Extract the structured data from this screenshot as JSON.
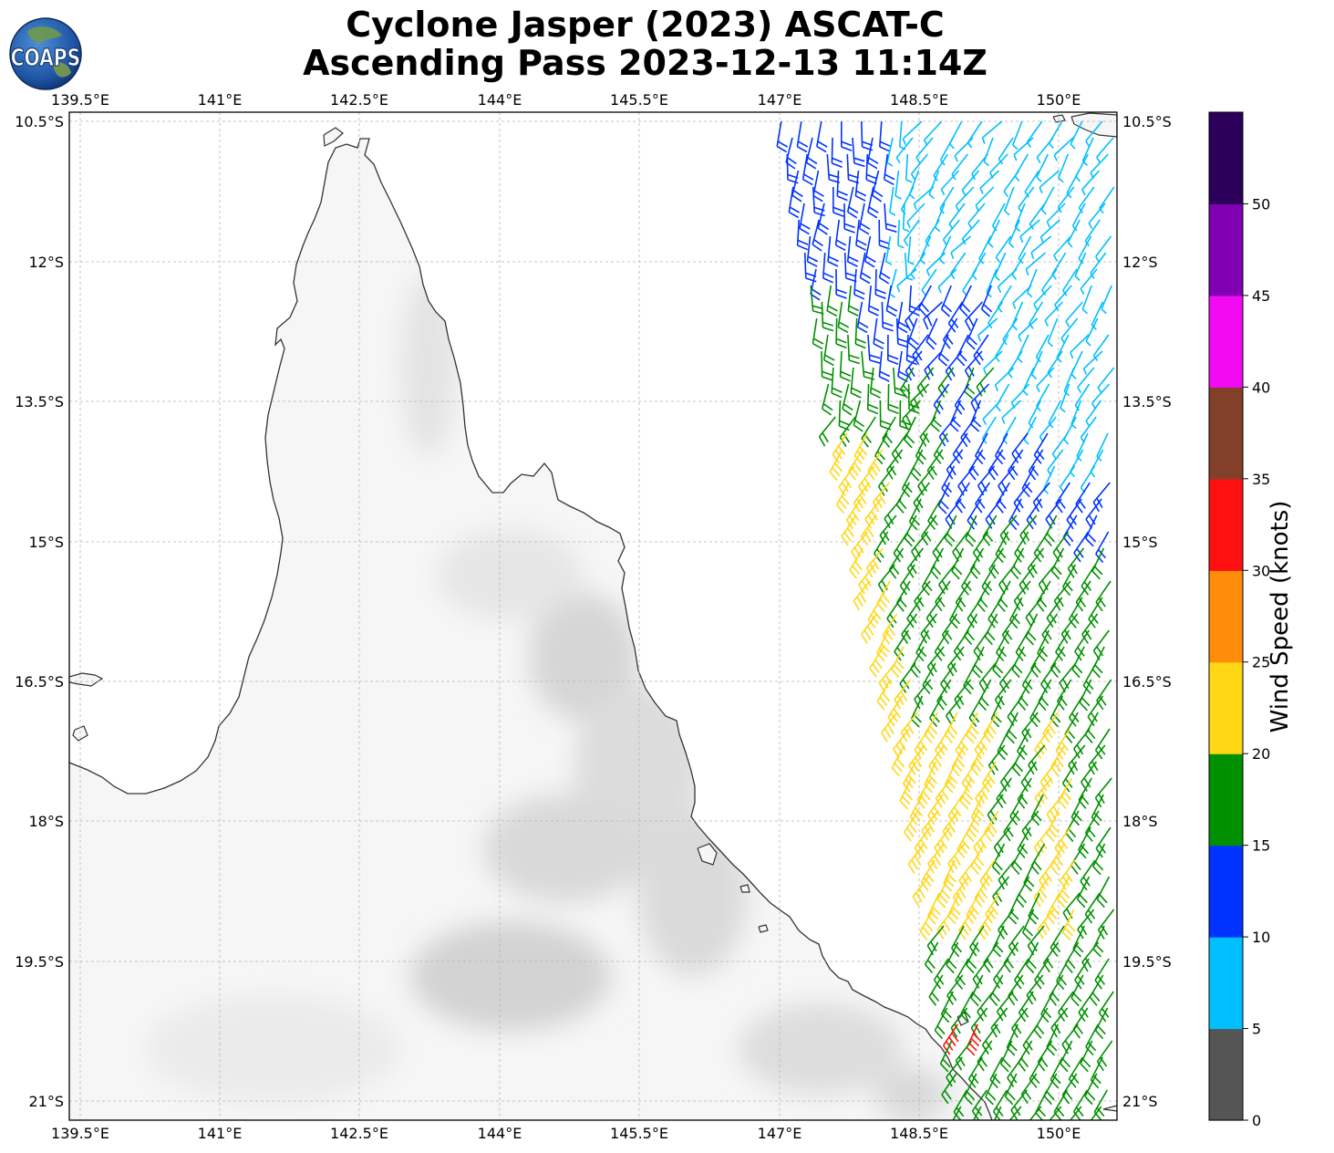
{
  "title_line1": "Cyclone Jasper (2023) ASCAT-C",
  "title_line2": "Ascending Pass 2023-12-13 11:14Z",
  "logo_text": "COAPS",
  "lon_ticks": [
    "139.5°E",
    "141°E",
    "142.5°E",
    "144°E",
    "145.5°E",
    "147°E",
    "148.5°E",
    "150°E"
  ],
  "lat_ticks": [
    "10.5°S",
    "12°S",
    "13.5°S",
    "15°S",
    "16.5°S",
    "18°S",
    "19.5°S",
    "21°S"
  ],
  "colorbar": {
    "label": "Wind Speed (knots)",
    "ticks": [
      "0",
      "5",
      "10",
      "15",
      "20",
      "25",
      "30",
      "35",
      "40",
      "45",
      "50"
    ],
    "bins": [
      {
        "range": "0-5",
        "color": "#555555"
      },
      {
        "range": "5-10",
        "color": "#00BFFF"
      },
      {
        "range": "10-15",
        "color": "#0033FF"
      },
      {
        "range": "15-20",
        "color": "#009000"
      },
      {
        "range": "20-25",
        "color": "#FFD715"
      },
      {
        "range": "25-30",
        "color": "#FF8C0A"
      },
      {
        "range": "30-35",
        "color": "#FF1010"
      },
      {
        "range": "35-40",
        "color": "#82402A"
      },
      {
        "range": "40-45",
        "color": "#F20AF2"
      },
      {
        "range": "45-50",
        "color": "#8200B4"
      },
      {
        "range": "50+",
        "color": "#2C005A"
      }
    ]
  },
  "map": {
    "region": "Northeast Queensland, Australia and Coral Sea",
    "lon_range": [
      139.4,
      150.6
    ],
    "lat_range": [
      -21.2,
      -10.4
    ],
    "wind_barbs": {
      "swath": "ASCAT-C ascending pass over the Coral Sea, east of the coast",
      "dominant_speeds_by_region": [
        {
          "region": "north near 10.5S-14S, 147E-150.5E",
          "speed_knots": "5-15"
        },
        {
          "region": "central 13S-16.5S, 147.5E-148.5E",
          "speed_knots": "15-25"
        },
        {
          "region": "south 15S-21S, 148E-150.5E",
          "speed_knots": "15-25"
        },
        {
          "region": "near 20.2S 149E",
          "speed_knots": "30-35"
        }
      ]
    }
  }
}
